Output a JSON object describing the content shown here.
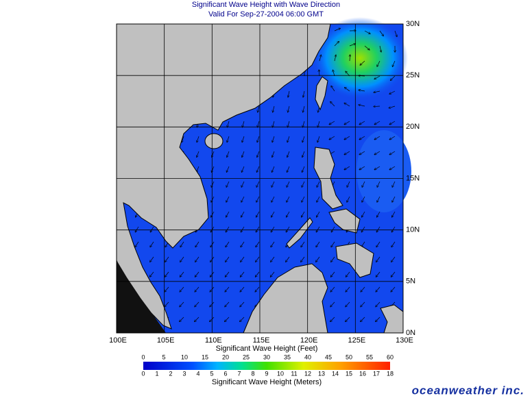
{
  "title": "Significant Wave Height with Wave Direction",
  "subtitle": "Valid For Sep-27-2004 06:00 GMT",
  "map": {
    "lat_labels": [
      "30N",
      "25N",
      "20N",
      "15N",
      "10N",
      "5N",
      "0N"
    ],
    "lon_labels": [
      "100E",
      "105E",
      "110E",
      "115E",
      "120E",
      "125E",
      "130E"
    ]
  },
  "legend": {
    "feet_title": "Significant Wave Height (Feet)",
    "feet_ticks": [
      0,
      5,
      10,
      15,
      20,
      25,
      30,
      35,
      40,
      45,
      50,
      55,
      60
    ],
    "meters_title": "Significant Wave Height (Meters)",
    "meters_ticks": [
      0,
      1,
      2,
      3,
      4,
      5,
      6,
      7,
      8,
      9,
      10,
      11,
      12,
      13,
      14,
      15,
      16,
      17,
      18
    ]
  },
  "brand": "oceanweather inc."
}
